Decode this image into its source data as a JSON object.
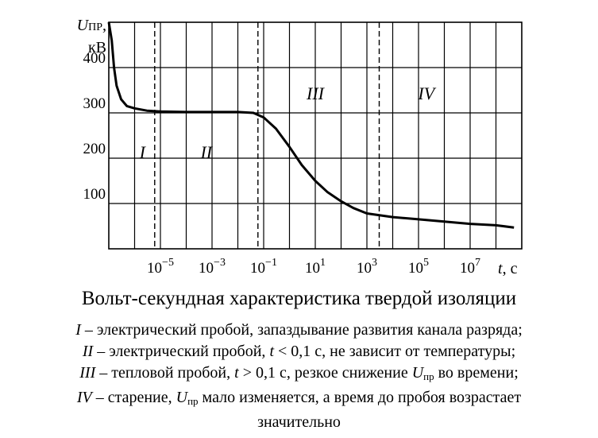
{
  "chart_data": {
    "type": "line",
    "ylabel_symbol": "U",
    "ylabel_sub": "ПР",
    "ylabel_comma": ",",
    "ylabel_unit": "кВ",
    "xlabel_symbol": "t",
    "xlabel_unit": ", с",
    "x_scale": "log",
    "xlim": [
      1e-07,
      1000000000.0
    ],
    "ylim": [
      0,
      500
    ],
    "grid": true,
    "y_ticks": [
      100,
      200,
      300,
      400
    ],
    "x_tick_labels": [
      {
        "value": 1e-05,
        "base": "10",
        "exp": "−5"
      },
      {
        "value": 0.001,
        "base": "10",
        "exp": "−3"
      },
      {
        "value": 0.1,
        "base": "10",
        "exp": "−1"
      },
      {
        "value": 10.0,
        "base": "10",
        "exp": "1"
      },
      {
        "value": 1000.0,
        "base": "10",
        "exp": "3"
      },
      {
        "value": 100000.0,
        "base": "10",
        "exp": "5"
      },
      {
        "value": 10000000.0,
        "base": "10",
        "exp": "7"
      }
    ],
    "boundaries": [
      6e-06,
      0.06,
      3000.0
    ],
    "regions": [
      {
        "label": "I",
        "x": 2e-06,
        "y": 200
      },
      {
        "label": "II",
        "x": 0.0006,
        "y": 200
      },
      {
        "label": "III",
        "x": 10,
        "y": 330
      },
      {
        "label": "IV",
        "x": 200000.0,
        "y": 330
      }
    ],
    "series": [
      {
        "x": [
          1e-07,
          1.3e-07,
          1.6e-07,
          2e-07,
          3e-07,
          5e-07,
          1e-06,
          3e-06,
          1e-05,
          0.0001,
          0.001,
          0.01,
          0.04,
          0.1,
          0.3,
          1,
          3,
          10,
          30,
          100,
          300,
          1000,
          10000.0,
          100000.0,
          1000000.0,
          10000000.0,
          100000000.0,
          500000000.0
        ],
        "y": [
          500,
          460,
          400,
          360,
          330,
          315,
          310,
          305,
          303,
          302,
          302,
          302,
          300,
          290,
          265,
          225,
          185,
          150,
          125,
          105,
          90,
          78,
          70,
          65,
          60,
          55,
          52,
          47
        ]
      }
    ]
  },
  "caption": {
    "title": "Вольт-секундная характеристика твердой изоляции",
    "lines": [
      {
        "mark": "I",
        "parts": [
          {
            "t": " – электрический пробой, запаздывание развития канала разряда;"
          }
        ]
      },
      {
        "mark": "II",
        "parts": [
          {
            "t": " – электрический пробой, "
          },
          {
            "t": "t",
            "it": true
          },
          {
            "t": " < 0,1 с, не зависит от температуры;"
          }
        ]
      },
      {
        "mark": "III",
        "parts": [
          {
            "t": " – тепловой пробой, "
          },
          {
            "t": "t",
            "it": true
          },
          {
            "t": " > 0,1 с, резкое снижение "
          },
          {
            "t": "U",
            "it": true
          },
          {
            "t": "пр",
            "sub": true
          },
          {
            "t": " во времени;"
          }
        ]
      },
      {
        "mark": "IV",
        "parts": [
          {
            "t": " – старение, "
          },
          {
            "t": "U",
            "it": true
          },
          {
            "t": "пр",
            "sub": true
          },
          {
            "t": " мало изменяется, а время до пробоя возрастает"
          }
        ]
      },
      {
        "mark": "",
        "parts": [
          {
            "t": "значительно"
          }
        ]
      }
    ]
  }
}
